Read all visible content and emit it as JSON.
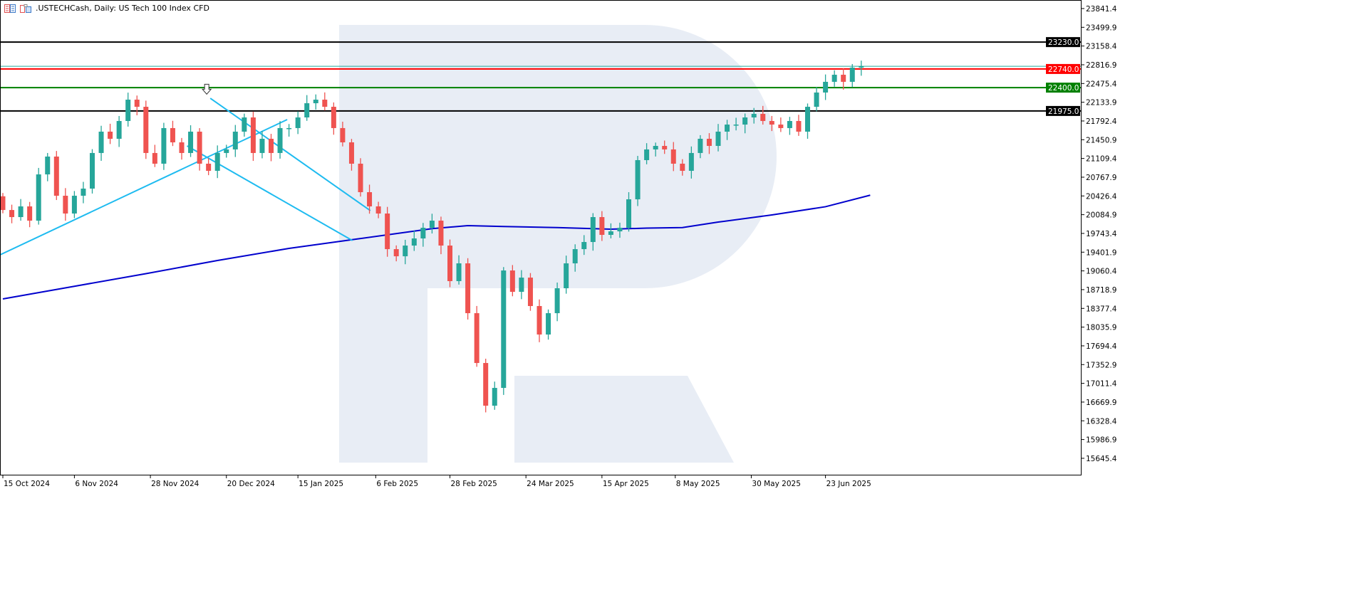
{
  "header": {
    "symbol_title": ".USTECHCash, Daily:  US Tech 100 Index CFD",
    "icons": [
      "chart-list-icon",
      "chart-properties-icon"
    ]
  },
  "colors": {
    "bull": "#26a69a",
    "bear": "#ef5350",
    "moving_average": "#0000cd",
    "trendline": "#1ebbf0",
    "watermark": "#e8edf5",
    "level_black": "#000000",
    "level_red": "#ff0000",
    "level_green": "#008000",
    "current_price": "#26a69a"
  },
  "chart_data": {
    "type": "candlestick",
    "title": ".USTECHCash, Daily:  US Tech 100 Index CFD",
    "ylim": [
      15500,
      23950
    ],
    "grid": false,
    "y_ticks": [
      "23841.4",
      "23499.9",
      "23158.4",
      "22816.9",
      "22475.4",
      "22133.9",
      "21792.4",
      "21450.9",
      "21109.4",
      "20767.9",
      "20426.4",
      "20084.9",
      "19743.4",
      "19401.9",
      "19060.4",
      "18718.9",
      "18377.4",
      "18035.9",
      "17694.4",
      "17352.9",
      "17011.4",
      "16669.9",
      "16328.4",
      "15986.9",
      "15645.4"
    ],
    "x_labels": [
      {
        "label": "15 Oct 2024",
        "index": 0
      },
      {
        "label": "6 Nov 2024",
        "index": 8
      },
      {
        "label": "28 Nov 2024",
        "index": 16.5
      },
      {
        "label": "20 Dec 2024",
        "index": 25
      },
      {
        "label": "15 Jan 2025",
        "index": 33
      },
      {
        "label": "6 Feb 2025",
        "index": 41.7
      },
      {
        "label": "28 Feb 2025",
        "index": 50
      },
      {
        "label": "24 Mar 2025",
        "index": 58.5
      },
      {
        "label": "15 Apr 2025",
        "index": 67
      },
      {
        "label": "8 May 2025",
        "index": 75.2
      },
      {
        "label": "30 May 2025",
        "index": 83.7
      },
      {
        "label": "23 Jun 2025",
        "index": 92
      }
    ],
    "first_open": 20420,
    "closes": [
      20170,
      20041,
      20236,
      19976,
      20819,
      21144,
      20430,
      20106,
      20430,
      20560,
      21209,
      21598,
      21468,
      21792,
      22181,
      22051,
      21209,
      21014,
      21663,
      21403,
      21209,
      21598,
      21014,
      20884,
      21209,
      21274,
      21598,
      21857,
      21209,
      21468,
      21209,
      21663,
      21663,
      21857,
      22116,
      22181,
      22051,
      21663,
      21403,
      21014,
      20495,
      20236,
      20106,
      19457,
      19327,
      19522,
      19652,
      19846,
      19976,
      19522,
      18874,
      19198,
      18290,
      17382,
      16604,
      16928,
      19068,
      18679,
      18938,
      18420,
      17901,
      18290,
      18744,
      19198,
      19457,
      19587,
      20041,
      19717,
      19781,
      19846,
      20365,
      21079,
      21274,
      21338,
      21274,
      21014,
      20884,
      21209,
      21468,
      21338,
      21598,
      21727,
      21727,
      21857,
      21922,
      21792,
      21727,
      21663,
      21792,
      21598,
      22051,
      22311,
      22506,
      22635,
      22506,
      22765,
      22790
    ],
    "moving_average": [
      [
        0,
        18550
      ],
      [
        8,
        18780
      ],
      [
        16,
        19010
      ],
      [
        24,
        19250
      ],
      [
        32,
        19470
      ],
      [
        40,
        19650
      ],
      [
        48,
        19830
      ],
      [
        52,
        19885
      ],
      [
        56,
        19870
      ],
      [
        62,
        19850
      ],
      [
        68,
        19820
      ],
      [
        72,
        19840
      ],
      [
        76,
        19850
      ],
      [
        80,
        19950
      ],
      [
        86,
        20080
      ],
      [
        92,
        20230
      ],
      [
        97,
        20440
      ]
    ],
    "horizontal_levels": [
      {
        "price": "23230.0",
        "color": "#000000"
      },
      {
        "price": "22740.0",
        "color": "#ff0000"
      },
      {
        "price": "22400.0",
        "color": "#008000"
      },
      {
        "price": "21975.0",
        "color": "#000000"
      }
    ],
    "current_price": 22790,
    "trendlines": [
      {
        "from": [
          -0.3,
          19354
        ],
        "to": [
          31.8,
          21818
        ]
      },
      {
        "from": [
          23.2,
          22207
        ],
        "to": [
          41.1,
          20158
        ]
      },
      {
        "from": [
          20.6,
          21338
        ],
        "to": [
          39.1,
          19613
        ]
      }
    ],
    "arrow_marker": {
      "index": 22.8,
      "price": 22280,
      "direction": "down"
    }
  }
}
